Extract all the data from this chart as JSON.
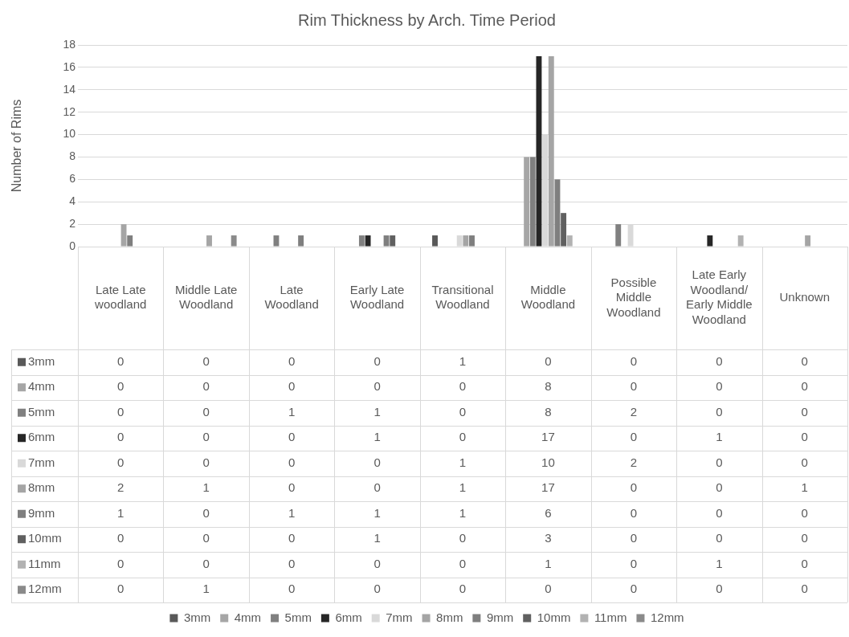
{
  "chart_data": {
    "type": "bar",
    "title": "Rim Thickness by Arch. Time Period",
    "ylabel": "Number of Rims",
    "categories": [
      "Late Late woodland",
      "Middle Late Woodland",
      "Late Woodland",
      "Early Late Woodland",
      "Transitional Woodland",
      "Middle Woodland",
      "Possible Middle Woodland",
      "Late Early Woodland/ Early Middle Woodland",
      "Unknown"
    ],
    "series": [
      {
        "name": "3mm",
        "color": "#595959",
        "values": [
          0,
          0,
          0,
          0,
          1,
          0,
          0,
          0,
          0
        ]
      },
      {
        "name": "4mm",
        "color": "#a6a6a6",
        "values": [
          0,
          0,
          0,
          0,
          0,
          8,
          0,
          0,
          0
        ]
      },
      {
        "name": "5mm",
        "color": "#808080",
        "values": [
          0,
          0,
          1,
          1,
          0,
          8,
          2,
          0,
          0
        ]
      },
      {
        "name": "6mm",
        "color": "#262626",
        "values": [
          0,
          0,
          0,
          1,
          0,
          17,
          0,
          1,
          0
        ]
      },
      {
        "name": "7mm",
        "color": "#d9d9d9",
        "values": [
          0,
          0,
          0,
          0,
          1,
          10,
          2,
          0,
          0
        ]
      },
      {
        "name": "8mm",
        "color": "#a5a5a5",
        "values": [
          2,
          1,
          0,
          0,
          1,
          17,
          0,
          0,
          1
        ]
      },
      {
        "name": "9mm",
        "color": "#7f7f7f",
        "values": [
          1,
          0,
          1,
          1,
          1,
          6,
          0,
          0,
          0
        ]
      },
      {
        "name": "10mm",
        "color": "#606060",
        "values": [
          0,
          0,
          0,
          1,
          0,
          3,
          0,
          0,
          0
        ]
      },
      {
        "name": "11mm",
        "color": "#b2b2b2",
        "values": [
          0,
          0,
          0,
          0,
          0,
          1,
          0,
          1,
          0
        ]
      },
      {
        "name": "12mm",
        "color": "#8a8a8a",
        "values": [
          0,
          1,
          0,
          0,
          0,
          0,
          0,
          0,
          0
        ]
      }
    ],
    "ylim": [
      0,
      18
    ],
    "yticks": [
      0,
      2,
      4,
      6,
      8,
      10,
      12,
      14,
      16,
      18
    ],
    "grid": "y",
    "legend": "bottom",
    "data_labels": true
  }
}
